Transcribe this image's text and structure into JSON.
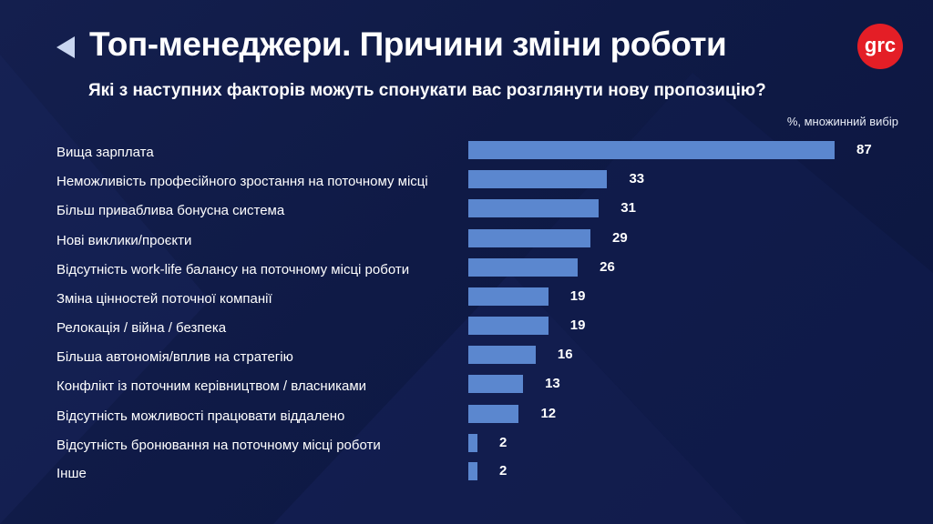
{
  "header": {
    "title": "Топ-менеджери. Причини зміни роботи",
    "logo": "grc",
    "back_icon": "triangle-left-icon"
  },
  "colors": {
    "bar": "#5b87cf",
    "background": "#101b45",
    "logo": "#e41e26"
  },
  "chart_data": {
    "type": "bar",
    "orientation": "horizontal",
    "title": "Топ-менеджери. Причини зміни роботи",
    "subtitle": "Які з наступних факторів можуть спонукати вас розглянути нову пропозицію?",
    "note": "%, множинний вибір",
    "categories": [
      "Вища зарплата",
      "Неможливість професійного зростання на поточному місці",
      "Більш приваблива бонусна система",
      "Нові виклики/проєкти",
      "Відсутність work-life балансу на поточному місці роботи",
      "Зміна цінностей поточної компанії",
      "Релокація / війна / безпека",
      "Більша автономія/вплив на стратегію",
      "Конфлікт із поточним керівництвом / власниками",
      "Відсутність можливості працювати віддалено",
      "Відсутність бронювання на поточному місці роботи",
      "Інше"
    ],
    "values": [
      87,
      33,
      31,
      29,
      26,
      19,
      19,
      16,
      13,
      12,
      2,
      2
    ],
    "xlim": [
      0,
      87
    ],
    "grid": false
  }
}
